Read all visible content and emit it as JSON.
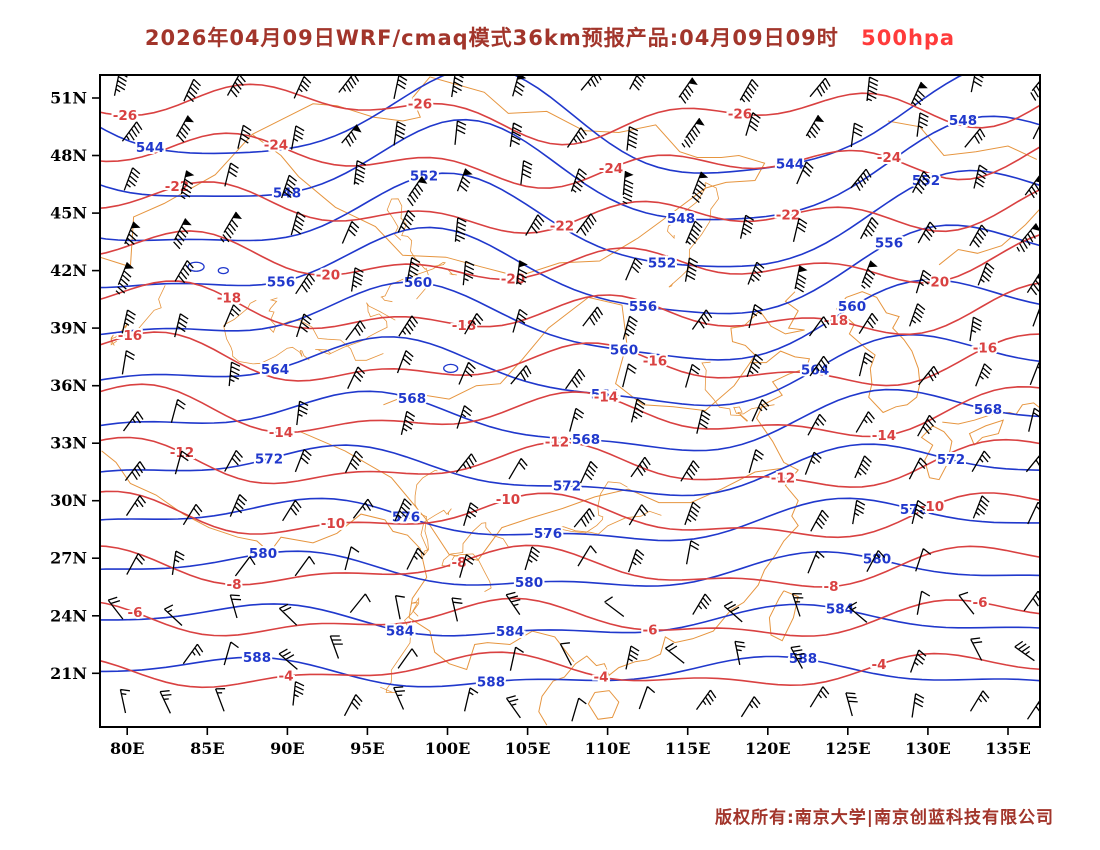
{
  "header": {
    "title": "2026年04月09日WRF/cmaq模式36km预报产品:04月09日09时",
    "level": "500hpa",
    "title_color": "#a2352b",
    "level_color": "#ff3b3b"
  },
  "footer": {
    "copyright": "版权所有:南京大学|南京创蓝科技有限公司",
    "color": "#a2352b"
  },
  "chart_data": {
    "type": "contour-map",
    "description": "500 hPa geopotential height (blue) and temperature (red) forecast contours with wind barbs over East Asia, WRF/CMAQ 36km model",
    "lon_range": [
      78.3,
      137.0
    ],
    "lat_range": [
      18.2,
      52.2
    ],
    "x_ticks": [
      "80E",
      "85E",
      "90E",
      "95E",
      "100E",
      "105E",
      "110E",
      "115E",
      "120E",
      "125E",
      "130E",
      "135E"
    ],
    "x_tick_lons": [
      80,
      85,
      90,
      95,
      100,
      105,
      110,
      115,
      120,
      125,
      130,
      135
    ],
    "y_ticks": [
      "51N",
      "48N",
      "45N",
      "42N",
      "39N",
      "36N",
      "33N",
      "30N",
      "27N",
      "24N",
      "21N"
    ],
    "y_tick_lats": [
      51,
      48,
      45,
      42,
      39,
      36,
      33,
      30,
      27,
      24,
      21
    ],
    "height_contours": {
      "color": "#2038cc",
      "units": "gpdm",
      "levels": [
        544,
        548,
        552,
        556,
        560,
        564,
        568,
        572,
        576,
        580,
        584,
        588
      ]
    },
    "temp_contours": {
      "color": "#d94141",
      "units": "°C",
      "levels": [
        -26,
        -24,
        -22,
        -20,
        -18,
        -16,
        -14,
        -12,
        -10,
        -8,
        -6,
        -4
      ]
    },
    "wind_barbs": {
      "color": "#000000"
    },
    "map_color": "#e6953f",
    "lake_color": "#2038cc",
    "axis_color": "#000000"
  }
}
